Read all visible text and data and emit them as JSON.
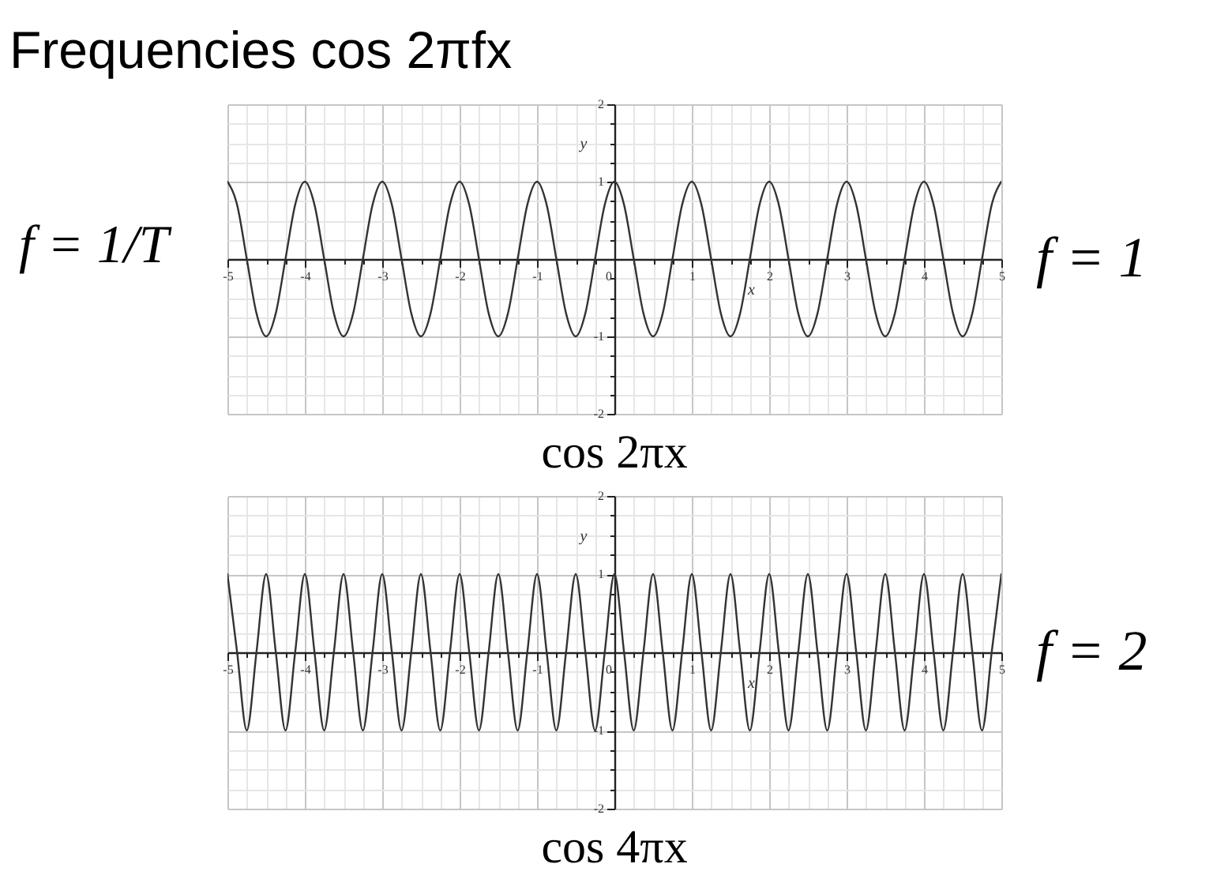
{
  "chart_data": [
    {
      "type": "line",
      "title": "Frequencies cos 2πfx",
      "subtitle": "f = 1/T",
      "xlabel": "x",
      "ylabel": "y",
      "annotations": [
        "f = 1"
      ],
      "x": [
        -5,
        -4.875,
        -4.75,
        -4.625,
        -4.5,
        -4.375,
        -4.25,
        -4.125,
        -4,
        -3.875,
        -3.75,
        -3.625,
        -3.5,
        -3.375,
        -3.25,
        -3.125,
        -3,
        -2.875,
        -2.75,
        -2.625,
        -2.5,
        -2.375,
        -2.25,
        -2.125,
        -2,
        -1.875,
        -1.75,
        -1.625,
        -1.5,
        -1.375,
        -1.25,
        -1.125,
        -1,
        -0.875,
        -0.75,
        -0.625,
        -0.5,
        -0.375,
        -0.25,
        -0.125,
        0,
        0.125,
        0.25,
        0.375,
        0.5,
        0.625,
        0.75,
        0.875,
        1,
        1.125,
        1.25,
        1.375,
        1.5,
        1.625,
        1.75,
        1.875,
        2,
        2.125,
        2.25,
        2.375,
        2.5,
        2.625,
        2.75,
        2.875,
        3,
        3.125,
        3.25,
        3.375,
        3.5,
        3.625,
        3.75,
        3.875,
        4,
        4.125,
        4.25,
        4.375,
        4.5,
        4.625,
        4.75,
        4.875,
        5
      ],
      "series": [
        {
          "name": "cos 2πx",
          "color": "#333333",
          "values": [
            1,
            0.7,
            0,
            -0.7,
            -1,
            -0.7,
            0,
            0.7,
            1,
            0.7,
            0,
            -0.7,
            -1,
            -0.7,
            0,
            0.7,
            1,
            0.7,
            0,
            -0.7,
            -1,
            -0.7,
            0,
            0.7,
            1,
            0.7,
            0,
            -0.7,
            -1,
            -0.7,
            0,
            0.7,
            1,
            0.7,
            0,
            -0.7,
            -1,
            -0.7,
            0,
            0.7,
            1,
            0.7,
            0,
            -0.7,
            -1,
            -0.7,
            0,
            0.7,
            1,
            0.7,
            0,
            -0.7,
            -1,
            -0.7,
            0,
            0.7,
            1,
            0.7,
            0,
            -0.7,
            -1,
            -0.7,
            0,
            0.7,
            1,
            0.7,
            0,
            -0.7,
            -1,
            -0.7,
            0,
            0.7,
            1,
            0.7,
            0,
            -0.7,
            -1,
            -0.7,
            0,
            0.7,
            1
          ]
        }
      ],
      "xlim": [
        -5,
        5
      ],
      "ylim": [
        -2,
        2
      ],
      "xticks": [
        -5,
        {
          "value": -4.75,
          "label": null
        },
        {
          "value": -4.5,
          "label": null
        },
        {
          "value": -4.25,
          "label": null
        },
        -4,
        {
          "value": -3.75,
          "label": null
        },
        {
          "value": -3.5,
          "label": null
        },
        {
          "value": -3.25,
          "label": null
        },
        -3,
        {
          "value": -2.75,
          "label": null
        },
        {
          "value": -2.5,
          "label": null
        },
        {
          "value": -2.25,
          "label": null
        },
        -2,
        {
          "value": -1.75,
          "label": null
        },
        {
          "value": -1.5,
          "label": null
        },
        {
          "value": -1.25,
          "label": null
        },
        -1,
        {
          "value": -0.75,
          "label": null
        },
        {
          "value": -0.5,
          "label": null
        },
        {
          "value": -0.25,
          "label": null
        },
        0,
        {
          "value": 0.25,
          "label": null
        },
        {
          "value": 0.5,
          "label": null
        },
        {
          "value": 0.75,
          "label": null
        },
        1,
        {
          "value": 1.25,
          "label": null
        },
        {
          "value": 1.5,
          "label": null
        },
        {
          "value": 1.75,
          "label": null
        },
        2,
        {
          "value": 2.25,
          "label": null
        },
        {
          "value": 2.5,
          "label": null
        },
        {
          "value": 2.75,
          "label": null
        },
        3,
        {
          "value": 3.25,
          "label": null
        },
        {
          "value": 3.5,
          "label": null
        },
        {
          "value": 3.75,
          "label": null
        },
        4,
        {
          "value": 4.25,
          "label": null
        },
        {
          "value": 4.5,
          "label": null
        },
        {
          "value": 4.75,
          "label": null
        },
        5
      ],
      "yticks": [
        -2,
        {
          "value": -1.75,
          "label": null
        },
        {
          "value": -1.5,
          "label": null
        },
        {
          "value": -1.25,
          "label": null
        },
        -1,
        {
          "value": -0.75,
          "label": null
        },
        {
          "value": -0.5,
          "label": null
        },
        {
          "value": -0.25,
          "label": null
        },
        {
          "value": 0,
          "label": null
        },
        {
          "value": 0.25,
          "label": null
        },
        {
          "value": 0.5,
          "label": null
        },
        {
          "value": 0.75,
          "label": null
        },
        1,
        {
          "value": 1.25,
          "label": null
        },
        {
          "value": 1.5,
          "label": null
        },
        {
          "value": 1.75,
          "label": null
        },
        2
      ],
      "grid": true
    },
    {
      "type": "line",
      "xlabel": "x",
      "ylabel": "y",
      "annotations": [
        "f = 2"
      ],
      "x": [
        -5,
        -4.875,
        -4.75,
        -4.625,
        -4.5,
        -4.375,
        -4.25,
        -4.125,
        -4,
        -3.875,
        -3.75,
        -3.625,
        -3.5,
        -3.375,
        -3.25,
        -3.125,
        -3,
        -2.875,
        -2.75,
        -2.625,
        -2.5,
        -2.375,
        -2.25,
        -2.125,
        -2,
        -1.875,
        -1.75,
        -1.625,
        -1.5,
        -1.375,
        -1.25,
        -1.125,
        -1,
        -0.875,
        -0.75,
        -0.625,
        -0.5,
        -0.375,
        -0.25,
        -0.125,
        0,
        0.125,
        0.25,
        0.375,
        0.5,
        0.625,
        0.75,
        0.875,
        1,
        1.125,
        1.25,
        1.375,
        1.5,
        1.625,
        1.75,
        1.875,
        2,
        2.125,
        2.25,
        2.375,
        2.5,
        2.625,
        2.75,
        2.875,
        3,
        3.125,
        3.25,
        3.375,
        3.5,
        3.625,
        3.75,
        3.875,
        4,
        4.125,
        4.25,
        4.375,
        4.5,
        4.625,
        4.75,
        4.875,
        5
      ],
      "series": [
        {
          "name": "cos 4πx",
          "color": "#333333",
          "values": [
            1,
            0,
            -1,
            0,
            1,
            0,
            -1,
            0,
            1,
            0,
            -1,
            0,
            1,
            0,
            -1,
            0,
            1,
            0,
            -1,
            0,
            1,
            0,
            -1,
            0,
            1,
            0,
            -1,
            0,
            1,
            0,
            -1,
            0,
            1,
            0,
            -1,
            0,
            1,
            0,
            -1,
            0,
            1,
            0,
            -1,
            0,
            1,
            0,
            -1,
            0,
            1,
            0,
            -1,
            0,
            1,
            0,
            -1,
            0,
            1,
            0,
            -1,
            0,
            1,
            0,
            -1,
            0,
            1,
            0,
            -1,
            0,
            1,
            0,
            -1,
            0,
            1,
            0,
            -1,
            0,
            1,
            0,
            -1,
            0,
            1
          ]
        }
      ],
      "xlim": [
        -5,
        5
      ],
      "ylim": [
        -2,
        2
      ],
      "xticks": [
        -5,
        {
          "value": -4.75,
          "label": null
        },
        {
          "value": -4.5,
          "label": null
        },
        {
          "value": -4.25,
          "label": null
        },
        -4,
        {
          "value": -3.75,
          "label": null
        },
        {
          "value": -3.5,
          "label": null
        },
        {
          "value": -3.25,
          "label": null
        },
        -3,
        {
          "value": -2.75,
          "label": null
        },
        {
          "value": -2.5,
          "label": null
        },
        {
          "value": -2.25,
          "label": null
        },
        -2,
        {
          "value": -1.75,
          "label": null
        },
        {
          "value": -1.5,
          "label": null
        },
        {
          "value": -1.25,
          "label": null
        },
        -1,
        {
          "value": -0.75,
          "label": null
        },
        {
          "value": -0.5,
          "label": null
        },
        {
          "value": -0.25,
          "label": null
        },
        0,
        {
          "value": 0.25,
          "label": null
        },
        {
          "value": 0.5,
          "label": null
        },
        {
          "value": 0.75,
          "label": null
        },
        1,
        {
          "value": 1.25,
          "label": null
        },
        {
          "value": 1.5,
          "label": null
        },
        {
          "value": 1.75,
          "label": null
        },
        2,
        {
          "value": 2.25,
          "label": null
        },
        {
          "value": 2.5,
          "label": null
        },
        {
          "value": 2.75,
          "label": null
        },
        3,
        {
          "value": 3.25,
          "label": null
        },
        {
          "value": 3.5,
          "label": null
        },
        {
          "value": 3.75,
          "label": null
        },
        4,
        {
          "value": 4.25,
          "label": null
        },
        {
          "value": 4.5,
          "label": null
        },
        {
          "value": 4.75,
          "label": null
        },
        5
      ],
      "yticks": [
        -2,
        {
          "value": -1.75,
          "label": null
        },
        {
          "value": -1.5,
          "label": null
        },
        {
          "value": -1.25,
          "label": null
        },
        -1,
        {
          "value": -0.75,
          "label": null
        },
        {
          "value": -0.5,
          "label": null
        },
        {
          "value": -0.25,
          "label": null
        },
        {
          "value": 0,
          "label": null
        },
        {
          "value": 0.25,
          "label": null
        },
        {
          "value": 0.5,
          "label": null
        },
        {
          "value": 0.75,
          "label": null
        },
        1,
        {
          "value": 1.25,
          "label": null
        },
        {
          "value": 1.5,
          "label": null
        },
        {
          "value": 1.75,
          "label": null
        },
        2
      ],
      "grid": true
    }
  ]
}
